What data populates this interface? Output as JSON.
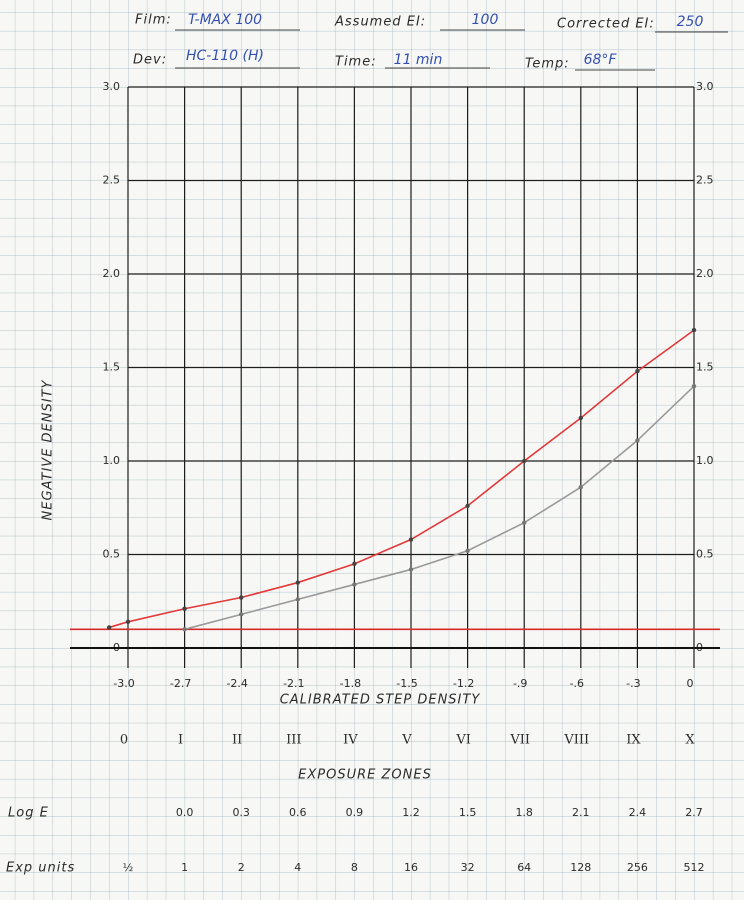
{
  "header": {
    "film_label": "Film:",
    "film": "T-MAX 100",
    "assumed_ei_label": "Assumed EI:",
    "assumed_ei": "100",
    "corrected_ei_label": "Corrected EI:",
    "corrected_ei": "250",
    "dev_label": "Dev:",
    "dev": "HC-110 (H)",
    "time_label": "Time:",
    "time": "11 min",
    "temp_label": "Temp:",
    "temp": "68°F"
  },
  "chart_data": {
    "type": "line",
    "x_label": "CALIBRATED STEP DENSITY",
    "y_label": "NEGATIVE DENSITY",
    "xlim": [
      -3.0,
      0
    ],
    "ylim": [
      0,
      3.0
    ],
    "xticks": [
      {
        "value": -3.0,
        "label": "-3.0"
      },
      -2.7,
      -2.4,
      -2.1,
      -1.8,
      -1.5,
      -1.2,
      {
        "value": -0.9,
        "label": "-.9"
      },
      {
        "value": -0.6,
        "label": "-.6"
      },
      {
        "value": -0.3,
        "label": "-.3"
      },
      0
    ],
    "yticks": [
      0,
      0.5,
      {
        "value": 1.0,
        "label": "1.0"
      },
      1.5,
      {
        "value": 2.0,
        "label": "2.0"
      },
      2.5,
      {
        "value": 3.0,
        "label": "3.0"
      }
    ],
    "grid": true,
    "reference_line": {
      "value": 0.1,
      "color": "#d42a2a"
    },
    "series": [
      {
        "color": "#e23a3a",
        "x": [
          -3.1,
          -3.0,
          -2.7,
          -2.4,
          -2.1,
          -1.8,
          -1.5,
          -1.2,
          -0.9,
          -0.6,
          -0.3,
          0
        ],
        "values": [
          0.11,
          0.14,
          0.21,
          0.27,
          0.35,
          0.45,
          0.58,
          0.76,
          1.0,
          1.23,
          1.48,
          1.7
        ]
      },
      {
        "color": "#9a9a9a",
        "x": [
          -2.7,
          -2.4,
          -2.1,
          -1.8,
          -1.5,
          -1.2,
          -0.9,
          -0.6,
          -0.3,
          0
        ],
        "values": [
          0.1,
          0.18,
          0.26,
          0.34,
          0.42,
          0.52,
          0.67,
          0.86,
          1.11,
          1.4
        ]
      }
    ],
    "zones": {
      "title": "EXPOSURE ZONES",
      "labels": [
        "0",
        "I",
        "II",
        "III",
        "IV",
        "V",
        "VI",
        "VII",
        "VIII",
        "IX",
        "X"
      ]
    },
    "log_e": {
      "label": "Log E",
      "values": [
        "0.0",
        "0.3",
        "0.6",
        "0.9",
        "1.2",
        "1.5",
        "1.8",
        "2.1",
        "2.4",
        "2.7"
      ]
    },
    "exp_units": {
      "label": "Exp units",
      "values": [
        "½",
        "1",
        "2",
        "4",
        "8",
        "16",
        "32",
        "64",
        "128",
        "256",
        "512"
      ]
    }
  }
}
